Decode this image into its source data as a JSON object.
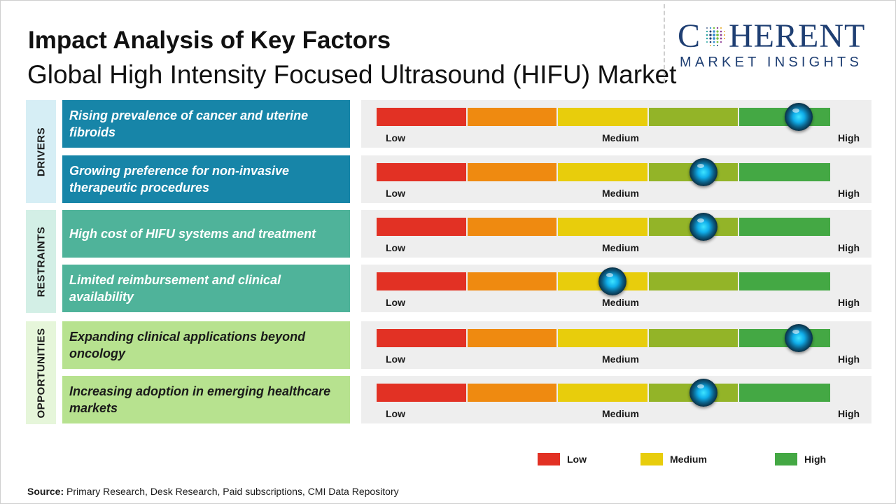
{
  "header": {
    "title": "Impact Analysis of Key Factors",
    "subtitle": "Global High Intensity Focused Ultrasound (HIFU) Market"
  },
  "logo": {
    "word_left": "C",
    "word_right": "HERENT",
    "tagline": "MARKET INSIGHTS",
    "color": "#1f3f73"
  },
  "colors": {
    "drivers_box": "#d6eef5",
    "drivers_factor": "#1785a8",
    "restraints_box": "#d3efe6",
    "restraints_factor": "#4fb39a",
    "opportunities_box": "#e6f6da",
    "opportunities_factor": "#b7e28f",
    "gauge_segments": [
      "#e23124",
      "#ef8a10",
      "#e8cd0c",
      "#93b428",
      "#44a844"
    ]
  },
  "chart_data": {
    "type": "gauge",
    "scale": [
      "Low",
      "Medium",
      "High"
    ],
    "scale_labels": {
      "low": "Low",
      "medium": "Medium",
      "high": "High"
    },
    "segments": 5,
    "categories": [
      {
        "name": "DRIVERS",
        "factors": [
          {
            "label": "Rising prevalence of cancer and uterine fibroids",
            "impact": 0.93
          },
          {
            "label": "Growing preference for non-invasive therapeutic procedures",
            "impact": 0.72
          }
        ]
      },
      {
        "name": "RESTRAINTS",
        "factors": [
          {
            "label": "High cost of HIFU systems and treatment",
            "impact": 0.72
          },
          {
            "label": "Limited reimbursement and clinical availability",
            "impact": 0.52
          }
        ]
      },
      {
        "name": "OPPORTUNITIES",
        "factors": [
          {
            "label": "Expanding clinical applications beyond oncology",
            "impact": 0.93
          },
          {
            "label": "Increasing adoption in emerging healthcare markets",
            "impact": 0.72
          }
        ]
      }
    ],
    "legend": [
      {
        "label": "Low",
        "color": "#e23124"
      },
      {
        "label": "Medium",
        "color": "#e8cd0c"
      },
      {
        "label": "High",
        "color": "#44a844"
      }
    ]
  },
  "footer": {
    "source_label": "Source:",
    "source_text": " Primary Research, Desk Research, Paid subscriptions, CMI Data Repository"
  }
}
